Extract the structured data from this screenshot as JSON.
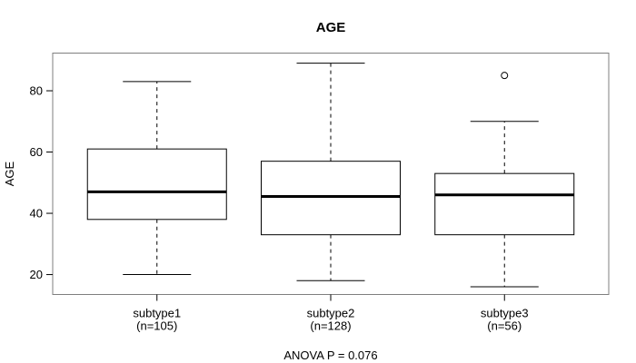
{
  "colors": {
    "background": "#ffffff",
    "frame": "#7f7f7f",
    "box_border": "#000000",
    "box_fill": "#ffffff",
    "median": "#000000",
    "whisker": "#000000",
    "text": "#000000"
  },
  "chart_data": {
    "type": "boxplot",
    "title": "AGE",
    "ylabel": "AGE",
    "xlabel": "",
    "annotation": "ANOVA P = 0.076",
    "grid": false,
    "legend": null,
    "ylim": [
      13.5,
      92.3
    ],
    "yticks": [
      20,
      40,
      60,
      80
    ],
    "groups": [
      {
        "label": "subtype1",
        "sublabel": "(n=105)",
        "n": 105,
        "whisker_low": 20,
        "q1": 38,
        "median": 47,
        "q3": 61,
        "whisker_high": 83,
        "outliers": []
      },
      {
        "label": "subtype2",
        "sublabel": "(n=128)",
        "n": 128,
        "whisker_low": 18,
        "q1": 33,
        "median": 45.5,
        "q3": 57,
        "whisker_high": 89,
        "outliers": []
      },
      {
        "label": "subtype3",
        "sublabel": "(n=56)",
        "n": 56,
        "whisker_low": 16,
        "q1": 33,
        "median": 46,
        "q3": 53,
        "whisker_high": 70,
        "outliers": [
          85
        ]
      }
    ]
  }
}
